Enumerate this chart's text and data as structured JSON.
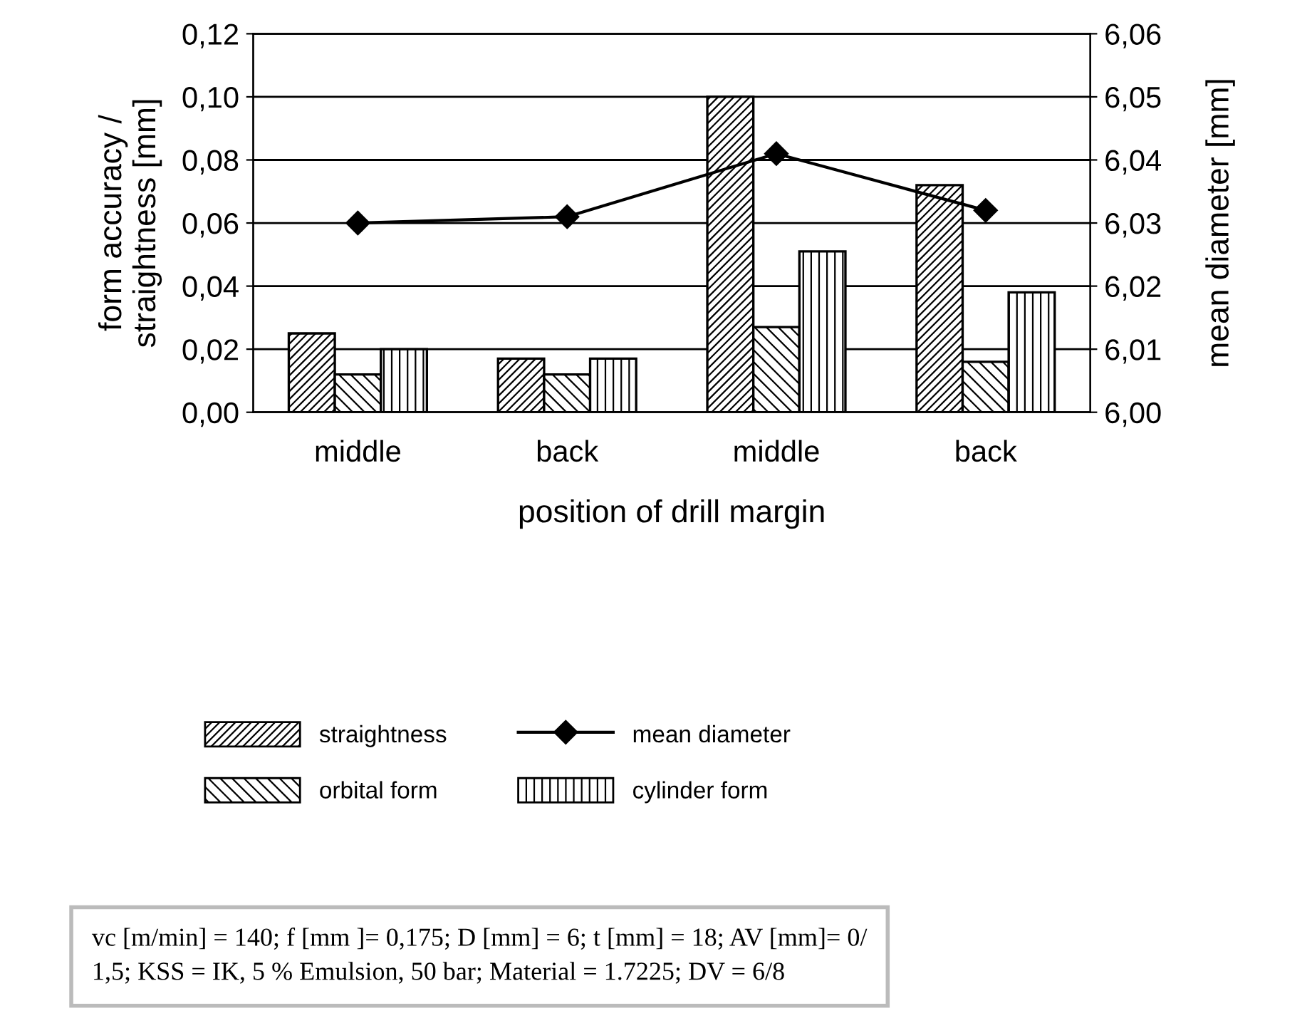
{
  "chart_data": {
    "type": "bar",
    "xlabel": "position of drill margin",
    "ylabel": "form accuracy /\nstraightness [mm]",
    "y2label": "mean diameter [mm]",
    "categories": [
      "middle",
      "back",
      "middle",
      "back"
    ],
    "series": [
      {
        "name": "straightness",
        "color": "#000000",
        "values": [
          0.025,
          0.017,
          0.1,
          0.072
        ]
      },
      {
        "name": "orbital form",
        "color": "#000000",
        "values": [
          0.012,
          0.012,
          0.027,
          0.016
        ]
      },
      {
        "name": "cylinder form",
        "color": "#000000",
        "values": [
          0.02,
          0.017,
          0.051,
          0.038
        ]
      },
      {
        "name": "mean diameter",
        "type": "line",
        "axis": "y2",
        "color": "#000000",
        "marker": "diamond",
        "line_style": "solid",
        "values": [
          6.03,
          6.031,
          6.041,
          6.032
        ]
      }
    ],
    "ylim": [
      0,
      0.12
    ],
    "yticks": [
      {
        "value": 0,
        "label": "0,00"
      },
      {
        "value": 0.02,
        "label": "0,02"
      },
      {
        "value": 0.04,
        "label": "0,04"
      },
      {
        "value": 0.06,
        "label": "0,06"
      },
      {
        "value": 0.08,
        "label": "0,08"
      },
      {
        "value": 0.1,
        "label": "0,10"
      },
      {
        "value": 0.12,
        "label": "0,12"
      }
    ],
    "y2lim": [
      6.0,
      6.06
    ],
    "y2ticks": [
      {
        "value": 6.0,
        "label": "6,00"
      },
      {
        "value": 6.01,
        "label": "6,01"
      },
      {
        "value": 6.02,
        "label": "6,02"
      },
      {
        "value": 6.03,
        "label": "6,03"
      },
      {
        "value": 6.04,
        "label": "6,04"
      },
      {
        "value": 6.05,
        "label": "6,05"
      },
      {
        "value": 6.06,
        "label": "6,06"
      }
    ],
    "grid": "y",
    "legend": "bottom",
    "annotations": [
      "vc [m/min] = 140; f [mm ]= 0,175; D [mm] = 6; t [mm] = 18; AV [mm]= 0/\n1,5; KSS = IK, 5 % Emulsion, 50 bar; Material = 1.7225; DV = 6/8"
    ]
  }
}
